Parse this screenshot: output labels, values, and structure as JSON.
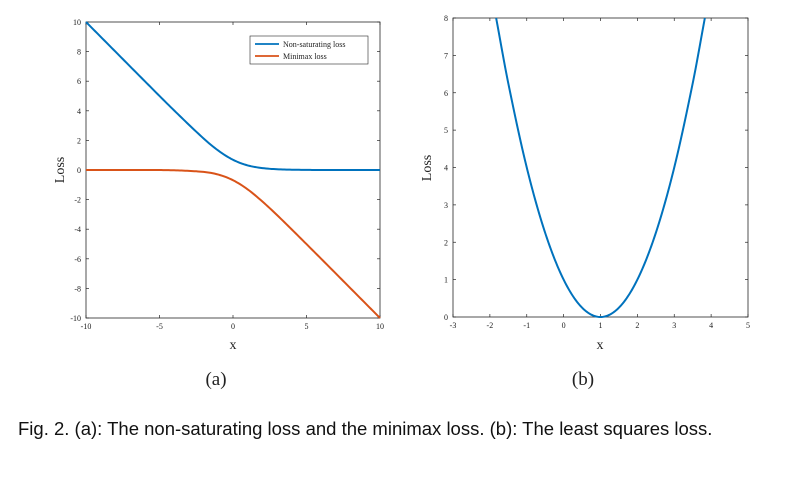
{
  "chart_data": [
    {
      "type": "line",
      "panel_label": "(a)",
      "xlabel": "x",
      "ylabel": "Loss",
      "xlim": [
        -10,
        10
      ],
      "ylim": [
        -10,
        10
      ],
      "xticks": [
        -10,
        -5,
        0,
        5,
        10
      ],
      "yticks": [
        -10,
        -8,
        -6,
        -4,
        -2,
        0,
        2,
        4,
        6,
        8,
        10
      ],
      "grid": false,
      "legend_position": "top-right",
      "series": [
        {
          "name": "Non-saturating loss",
          "color": "#0072BD",
          "x": [
            -10,
            -8,
            -6,
            -4,
            -2,
            -1,
            0,
            1,
            2,
            3,
            4,
            6,
            8,
            10
          ],
          "values": [
            10.0,
            8.0,
            6.0,
            4.02,
            2.13,
            1.31,
            0.69,
            0.31,
            0.13,
            0.05,
            0.02,
            0.0,
            0.0,
            0.0
          ]
        },
        {
          "name": "Minimax loss",
          "color": "#D95319",
          "x": [
            -10,
            -8,
            -6,
            -4,
            -2,
            -1,
            0,
            1,
            2,
            3,
            4,
            6,
            8,
            10
          ],
          "values": [
            0.0,
            0.0,
            0.0,
            -0.02,
            -0.13,
            -0.31,
            -0.69,
            -1.31,
            -2.13,
            -3.05,
            -4.02,
            -6.0,
            -8.0,
            -10.0
          ]
        }
      ]
    },
    {
      "type": "line",
      "panel_label": "(b)",
      "xlabel": "x",
      "ylabel": "Loss",
      "xlim": [
        -3,
        5
      ],
      "ylim": [
        0,
        8
      ],
      "xticks": [
        -3,
        -2,
        -1,
        0,
        1,
        2,
        3,
        4,
        5
      ],
      "yticks": [
        0,
        1,
        2,
        3,
        4,
        5,
        6,
        7,
        8
      ],
      "grid": false,
      "series": [
        {
          "name": "Least squares loss",
          "color": "#0072BD",
          "x": [
            -1.83,
            -1.5,
            -1,
            -0.5,
            0,
            0.5,
            1,
            1.5,
            2,
            2.5,
            3,
            3.5,
            3.83
          ],
          "values": [
            8.0,
            6.25,
            4.0,
            2.25,
            1.0,
            0.25,
            0.0,
            0.25,
            1.0,
            2.25,
            4.0,
            6.25,
            8.0
          ]
        }
      ]
    }
  ],
  "caption": "Fig. 2.  (a): The non-saturating loss and the minimax loss. (b): The least squares loss."
}
